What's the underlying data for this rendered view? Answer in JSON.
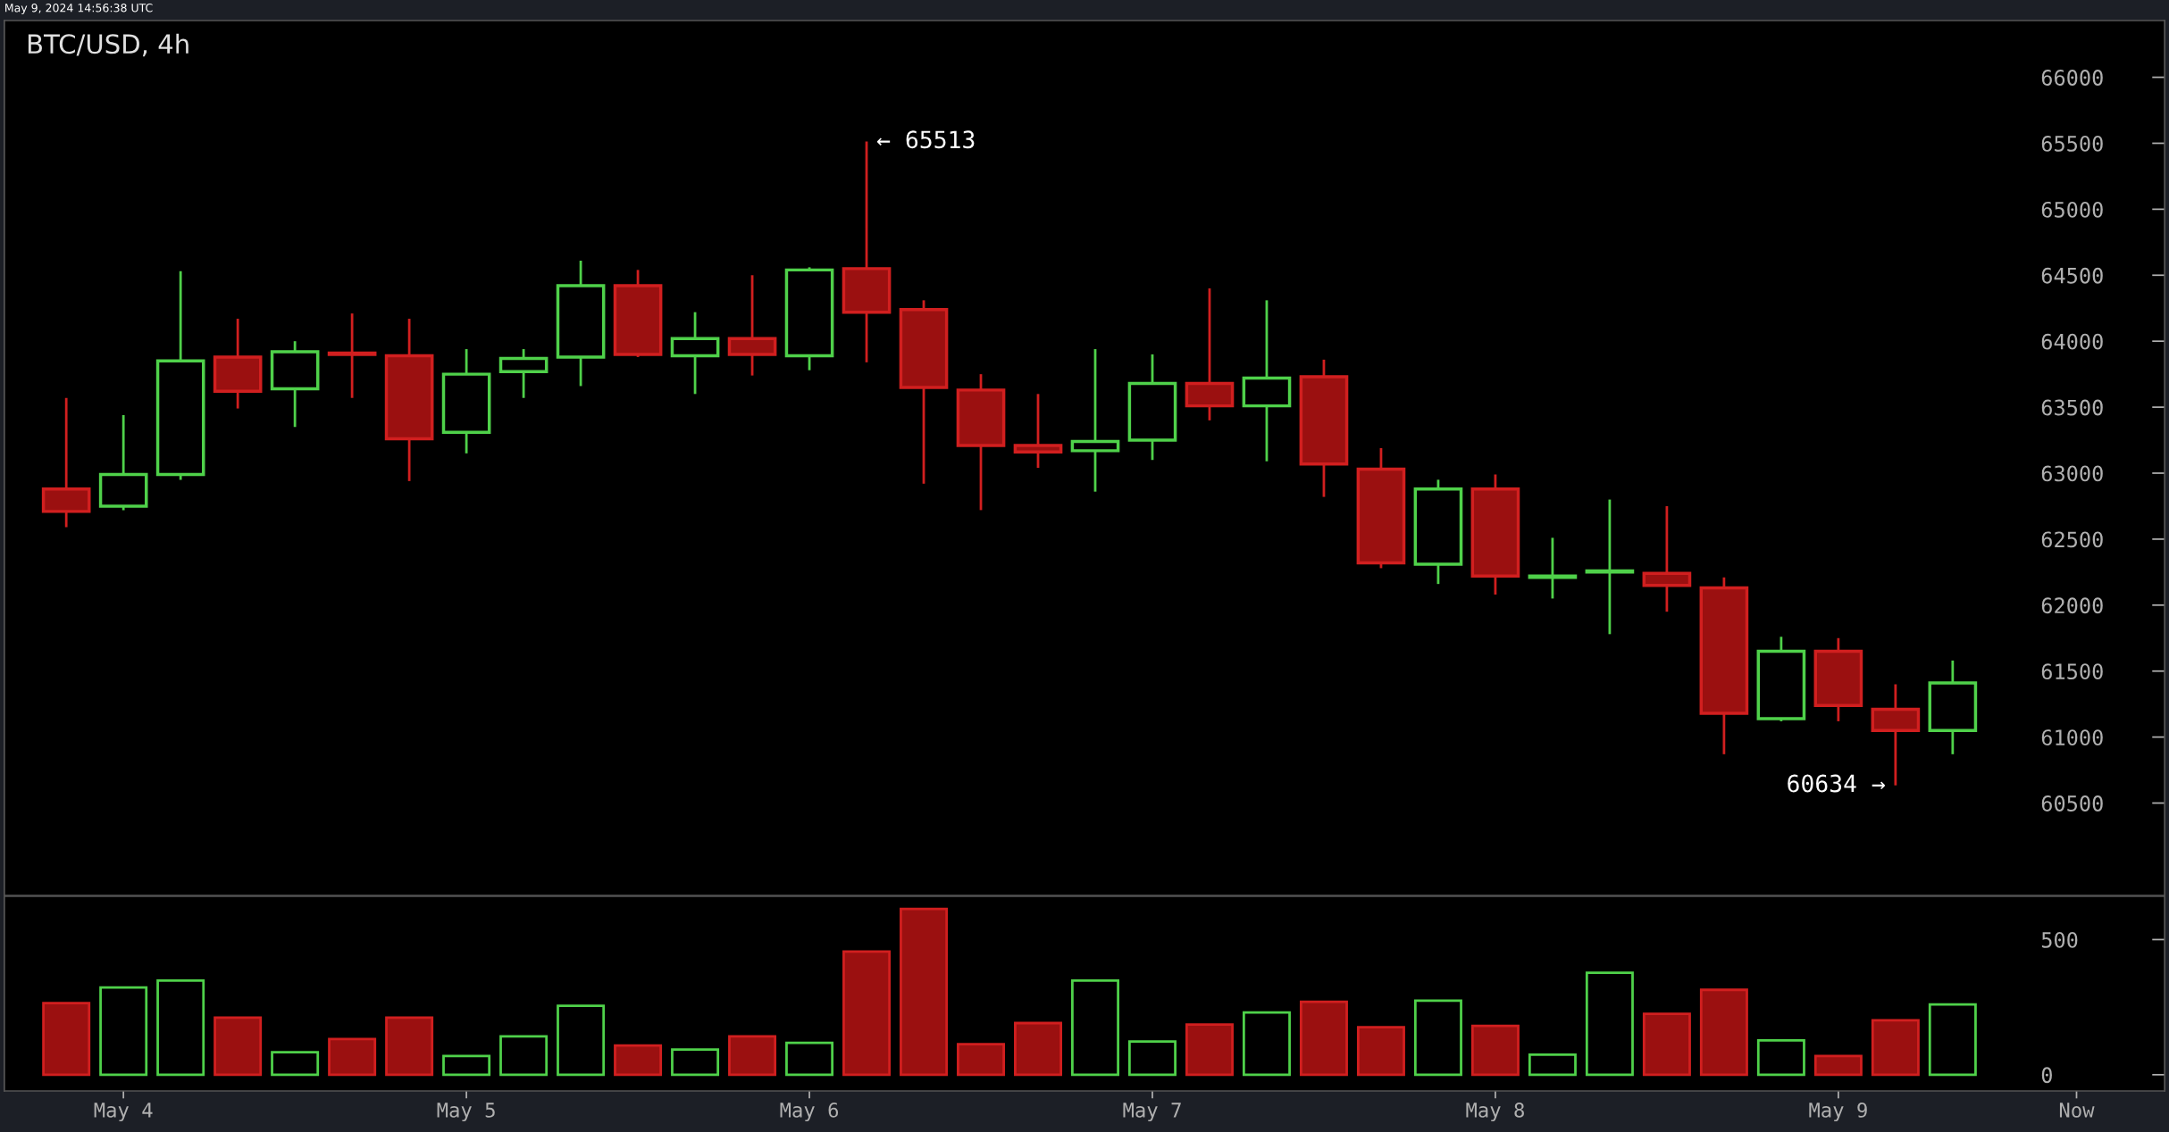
{
  "chart_data": [
    {
      "type": "candlestick",
      "title": "BTC/USD, 4h",
      "x": [
        "2024-05-03T20:00",
        "2024-05-04T00:00",
        "2024-05-04T04:00",
        "2024-05-04T08:00",
        "2024-05-04T12:00",
        "2024-05-04T16:00",
        "2024-05-04T20:00",
        "2024-05-05T00:00",
        "2024-05-05T04:00",
        "2024-05-05T08:00",
        "2024-05-05T12:00",
        "2024-05-05T16:00",
        "2024-05-05T20:00",
        "2024-05-06T00:00",
        "2024-05-06T04:00",
        "2024-05-06T08:00",
        "2024-05-06T12:00",
        "2024-05-06T16:00",
        "2024-05-06T20:00",
        "2024-05-07T00:00",
        "2024-05-07T04:00",
        "2024-05-07T08:00",
        "2024-05-07T12:00",
        "2024-05-07T16:00",
        "2024-05-07T20:00",
        "2024-05-08T00:00",
        "2024-05-08T04:00",
        "2024-05-08T08:00",
        "2024-05-08T12:00",
        "2024-05-08T16:00",
        "2024-05-08T20:00",
        "2024-05-09T00:00",
        "2024-05-09T04:00",
        "2024-05-09T08:00"
      ],
      "ohlc": [
        [
          62880,
          63570,
          62590,
          62710
        ],
        [
          62750,
          63440,
          62720,
          62990
        ],
        [
          62990,
          64530,
          62950,
          63850
        ],
        [
          63880,
          64170,
          63490,
          63620
        ],
        [
          63640,
          64000,
          63350,
          63920
        ],
        [
          63910,
          64210,
          63570,
          63900
        ],
        [
          63890,
          64170,
          62940,
          63260
        ],
        [
          63310,
          63940,
          63150,
          63750
        ],
        [
          63770,
          63940,
          63570,
          63870
        ],
        [
          63880,
          64610,
          63660,
          64420
        ],
        [
          64420,
          64540,
          63880,
          63900
        ],
        [
          63890,
          64220,
          63600,
          64020
        ],
        [
          64020,
          64500,
          63740,
          63900
        ],
        [
          63890,
          64560,
          63780,
          64540
        ],
        [
          64550,
          65513,
          63840,
          64220
        ],
        [
          64240,
          64310,
          62920,
          63650
        ],
        [
          63630,
          63750,
          62720,
          63210
        ],
        [
          63210,
          63600,
          63040,
          63160
        ],
        [
          63170,
          63940,
          62860,
          63240
        ],
        [
          63250,
          63900,
          63100,
          63680
        ],
        [
          63680,
          64400,
          63400,
          63510
        ],
        [
          63510,
          64310,
          63090,
          63720
        ],
        [
          63730,
          63860,
          62820,
          63070
        ],
        [
          63030,
          63190,
          62280,
          62320
        ],
        [
          62310,
          62950,
          62160,
          62880
        ],
        [
          62880,
          62990,
          62080,
          62220
        ],
        [
          62210,
          62510,
          62050,
          62220
        ],
        [
          62250,
          62800,
          61780,
          62260
        ],
        [
          62240,
          62750,
          61950,
          62150
        ],
        [
          62130,
          62210,
          60870,
          61180
        ],
        [
          61140,
          61760,
          61120,
          61650
        ],
        [
          61650,
          61750,
          61120,
          61240
        ],
        [
          61210,
          61400,
          60634,
          61050
        ],
        [
          61050,
          61580,
          60870,
          61410
        ]
      ],
      "colors": [
        "#d11f1f",
        "#4fd14a",
        "#4fd14a",
        "#d11f1f",
        "#4fd14a",
        "#d11f1f",
        "#d11f1f",
        "#4fd14a",
        "#4fd14a",
        "#4fd14a",
        "#d11f1f",
        "#4fd14a",
        "#d11f1f",
        "#4fd14a",
        "#d11f1f",
        "#d11f1f",
        "#d11f1f",
        "#d11f1f",
        "#4fd14a",
        "#4fd14a",
        "#d11f1f",
        "#4fd14a",
        "#d11f1f",
        "#d11f1f",
        "#4fd14a",
        "#d11f1f",
        "#4fd14a",
        "#4fd14a",
        "#d11f1f",
        "#d11f1f",
        "#4fd14a",
        "#d11f1f",
        "#d11f1f",
        "#4fd14a"
      ],
      "xlim": [
        "2024-05-03T15:40",
        "2024-05-09T22:50"
      ],
      "ylim": [
        59800,
        66430
      ],
      "yticks": [
        60500,
        61000,
        61500,
        62000,
        62500,
        63000,
        63500,
        64000,
        64500,
        65000,
        65500,
        66000
      ],
      "tick_labels": "y",
      "grid": false,
      "annotations": [
        "May 9, 2024 14:56:38 UTC",
        {
          "text": "← 65513",
          "x": "2024-05-06T04:00",
          "y": 65513
        },
        {
          "text": "60634 →",
          "x": "2024-05-09T04:00",
          "y": 60634
        }
      ]
    },
    {
      "type": "bar",
      "x": [
        "2024-05-03T20:00",
        "2024-05-04T00:00",
        "2024-05-04T04:00",
        "2024-05-04T08:00",
        "2024-05-04T12:00",
        "2024-05-04T16:00",
        "2024-05-04T20:00",
        "2024-05-05T00:00",
        "2024-05-05T04:00",
        "2024-05-05T08:00",
        "2024-05-05T12:00",
        "2024-05-05T16:00",
        "2024-05-05T20:00",
        "2024-05-06T00:00",
        "2024-05-06T04:00",
        "2024-05-06T08:00",
        "2024-05-06T12:00",
        "2024-05-06T16:00",
        "2024-05-06T20:00",
        "2024-05-07T00:00",
        "2024-05-07T04:00",
        "2024-05-07T08:00",
        "2024-05-07T12:00",
        "2024-05-07T16:00",
        "2024-05-07T20:00",
        "2024-05-08T00:00",
        "2024-05-08T04:00",
        "2024-05-08T08:00",
        "2024-05-08T12:00",
        "2024-05-08T16:00",
        "2024-05-08T20:00",
        "2024-05-09T00:00",
        "2024-05-09T04:00",
        "2024-05-09T08:00"
      ],
      "values": [
        265,
        323,
        348,
        211,
        83,
        132,
        211,
        69,
        142,
        255,
        108,
        93,
        142,
        118,
        456,
        613,
        113,
        191,
        348,
        123,
        186,
        230,
        270,
        176,
        274,
        181,
        74,
        377,
        225,
        314,
        127,
        69,
        201,
        260
      ],
      "colors": [
        "#d11f1f",
        "#4fd14a",
        "#4fd14a",
        "#d11f1f",
        "#4fd14a",
        "#d11f1f",
        "#d11f1f",
        "#4fd14a",
        "#4fd14a",
        "#4fd14a",
        "#d11f1f",
        "#4fd14a",
        "#d11f1f",
        "#4fd14a",
        "#d11f1f",
        "#d11f1f",
        "#d11f1f",
        "#d11f1f",
        "#4fd14a",
        "#4fd14a",
        "#d11f1f",
        "#4fd14a",
        "#d11f1f",
        "#d11f1f",
        "#4fd14a",
        "#d11f1f",
        "#4fd14a",
        "#4fd14a",
        "#d11f1f",
        "#d11f1f",
        "#4fd14a",
        "#d11f1f",
        "#d11f1f",
        "#4fd14a"
      ],
      "xlim": [
        "2024-05-03T15:40",
        "2024-05-09T22:50"
      ],
      "xticks": [
        {
          "value": "2024-05-04T00:00",
          "label": "May 4"
        },
        {
          "value": "2024-05-05T00:00",
          "label": "May 5"
        },
        {
          "value": "2024-05-06T00:00",
          "label": "May 6"
        },
        {
          "value": "2024-05-07T00:00",
          "label": "May 7"
        },
        {
          "value": "2024-05-08T00:00",
          "label": "May 8"
        },
        {
          "value": "2024-05-09T00:00",
          "label": "May 9"
        },
        {
          "value": "2024-05-09T16:40",
          "label": "Now"
        }
      ],
      "ylim": [
        -60,
        660
      ],
      "yticks": [
        0,
        500
      ],
      "grid": false
    }
  ]
}
